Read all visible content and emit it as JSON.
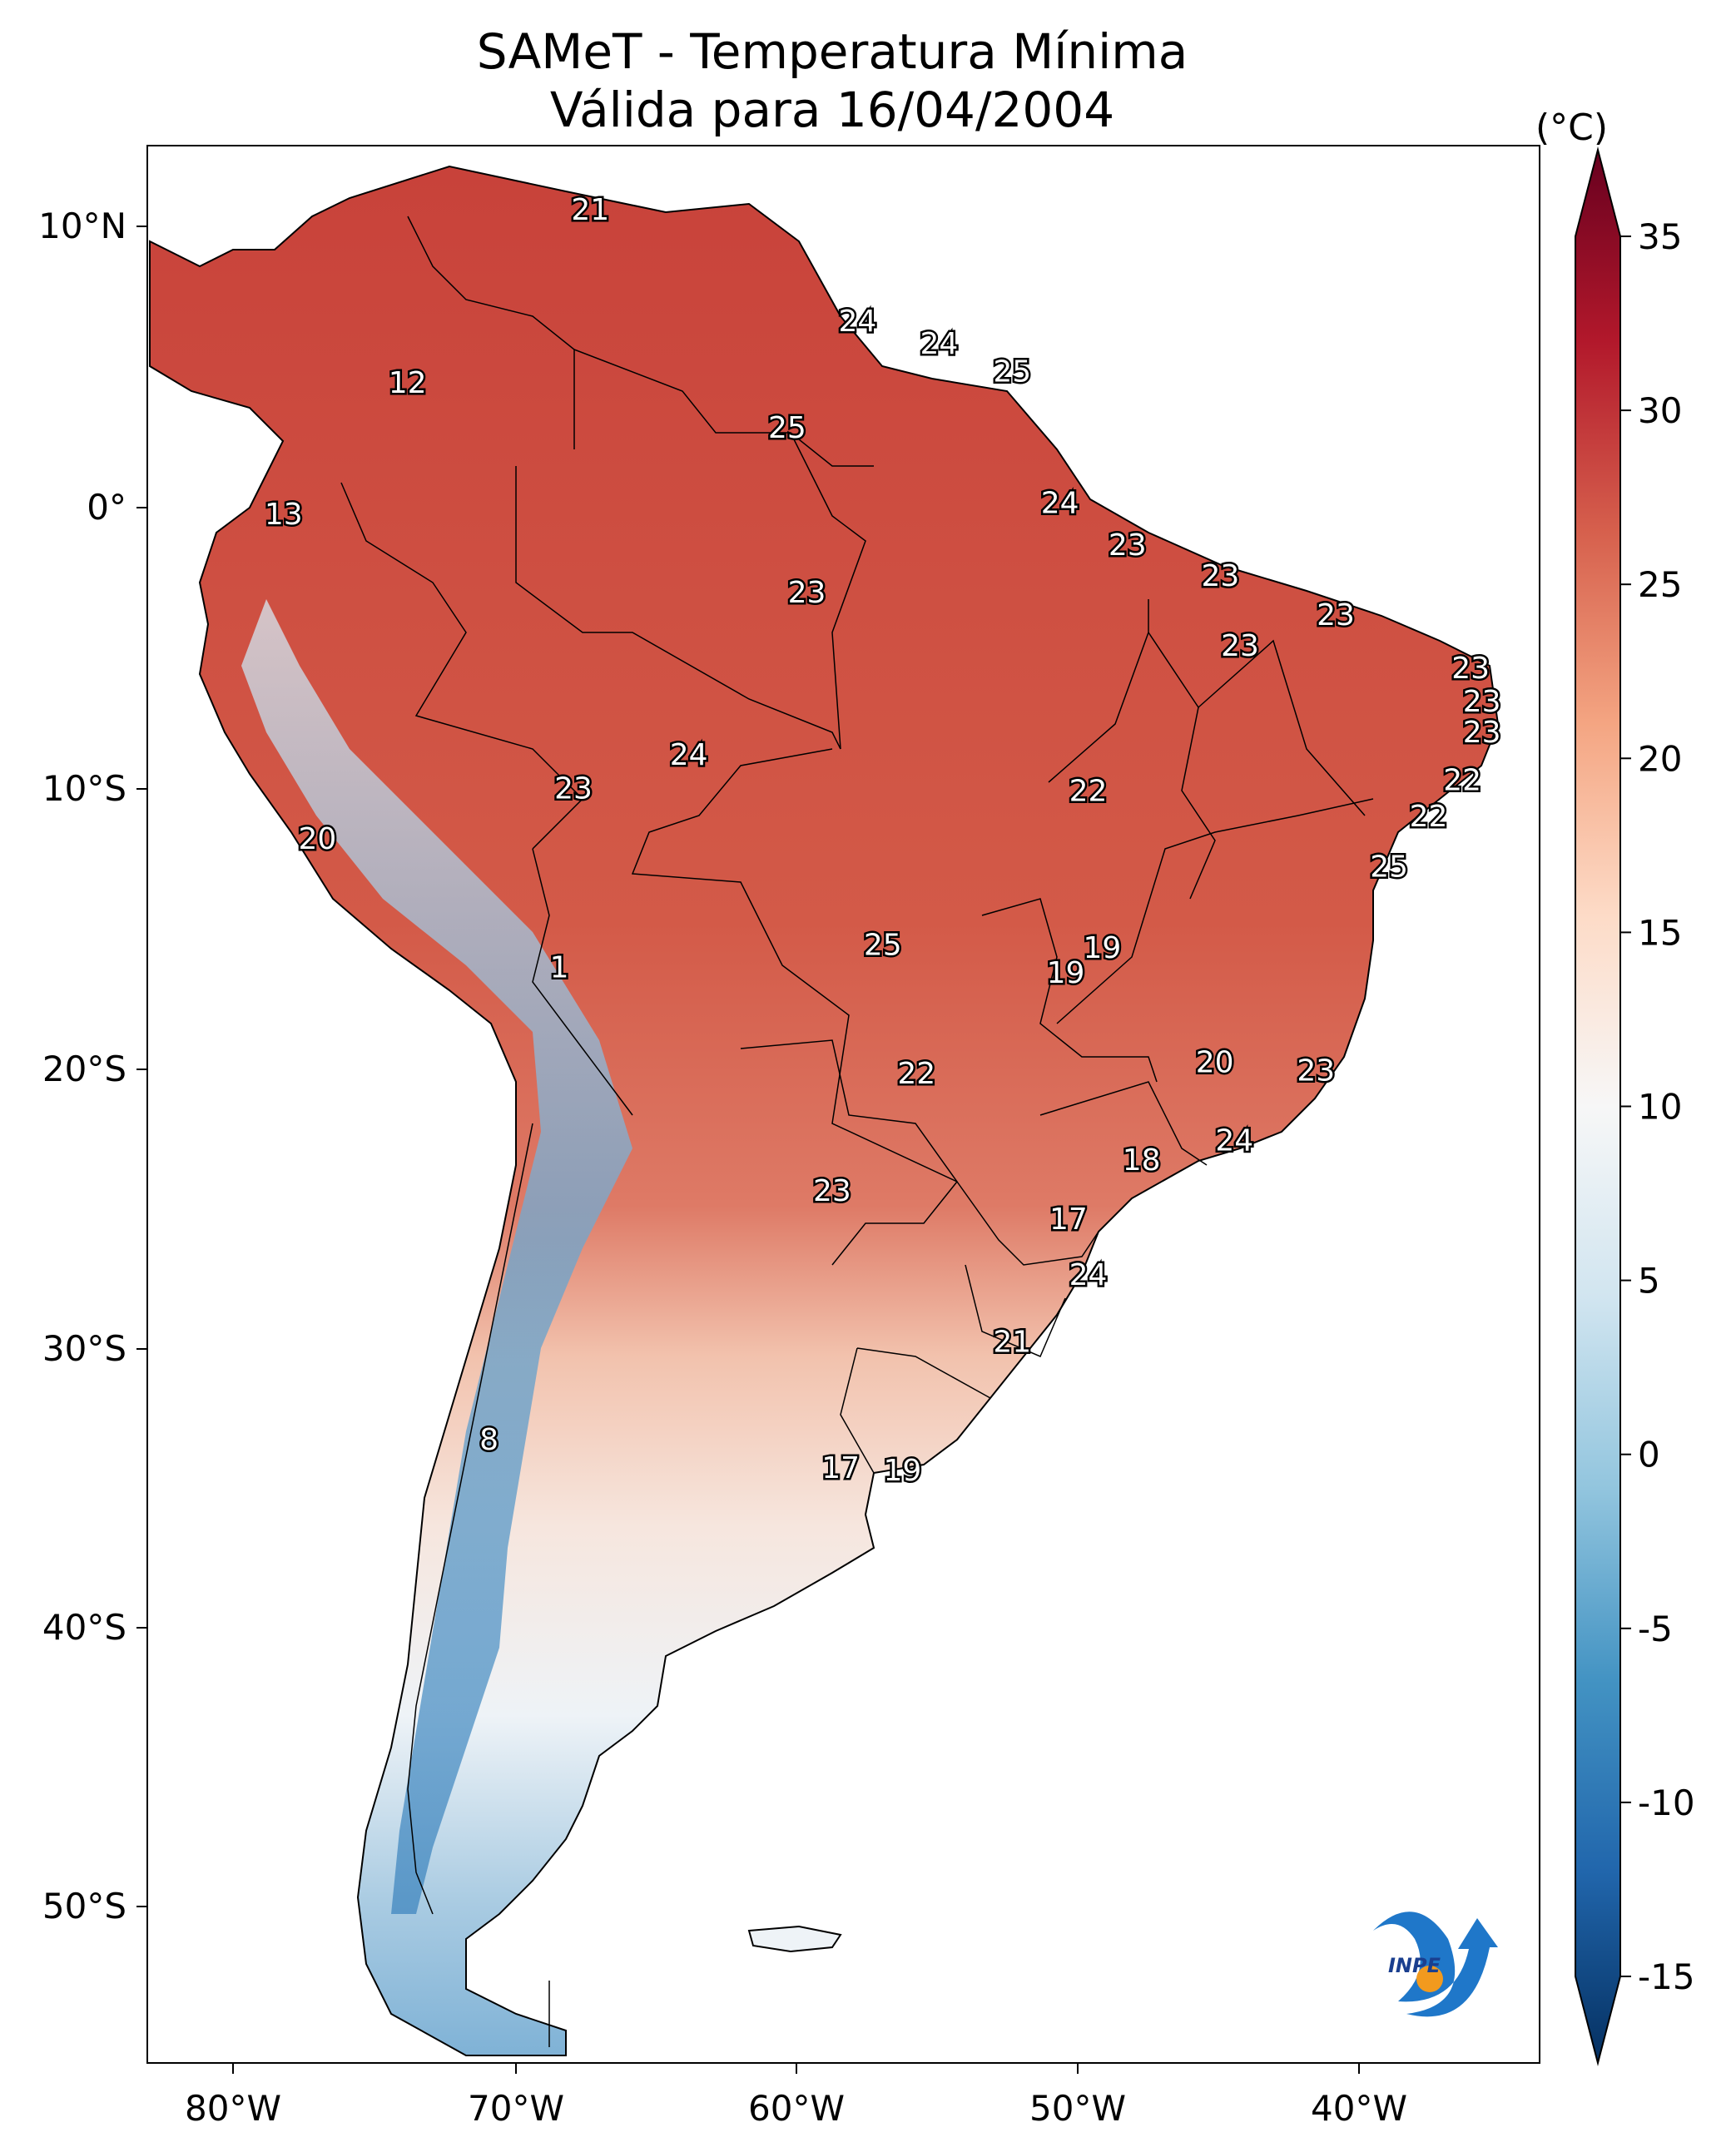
{
  "title_line1": "SAMeT - Temperatura Mínima",
  "title_line2": "Válida para 16/04/2004",
  "colorbar": {
    "units": "(°C)",
    "ticks": [
      "35",
      "30",
      "25",
      "20",
      "15",
      "10",
      "5",
      "0",
      "-5",
      "-10",
      "-15"
    ],
    "min": -15,
    "max": 35,
    "colors": [
      "#053061",
      "#2166ac",
      "#4393c3",
      "#92c5de",
      "#d1e5f0",
      "#f7f7f7",
      "#fddbc7",
      "#f4a582",
      "#d6604d",
      "#b2182b",
      "#67001f"
    ]
  },
  "axes": {
    "lon_labels": [
      "80°W",
      "70°W",
      "60°W",
      "50°W",
      "40°W"
    ],
    "lat_labels": [
      "10°N",
      "0°",
      "10°S",
      "20°S",
      "30°S",
      "40°S",
      "50°S"
    ]
  },
  "logo": {
    "text": "INPE"
  },
  "map_labels": [
    {
      "text": "21",
      "lon": -67.3,
      "lat": 10.6
    },
    {
      "text": "12",
      "lon": -73.8,
      "lat": 4.4
    },
    {
      "text": "13",
      "lon": -78.2,
      "lat": -0.3
    },
    {
      "text": "24",
      "lon": -57.8,
      "lat": 6.6
    },
    {
      "text": "24",
      "lon": -54.9,
      "lat": 5.8
    },
    {
      "text": "25",
      "lon": -52.3,
      "lat": 4.8
    },
    {
      "text": "25",
      "lon": -60.3,
      "lat": 2.8
    },
    {
      "text": "24",
      "lon": -50.6,
      "lat": 0.1
    },
    {
      "text": "23",
      "lon": -48.2,
      "lat": -1.4
    },
    {
      "text": "23",
      "lon": -44.9,
      "lat": -2.5
    },
    {
      "text": "23",
      "lon": -40.8,
      "lat": -3.9
    },
    {
      "text": "23",
      "lon": -59.6,
      "lat": -3.1
    },
    {
      "text": "23",
      "lon": -44.2,
      "lat": -5.0
    },
    {
      "text": "23",
      "lon": -36.0,
      "lat": -5.8
    },
    {
      "text": "23",
      "lon": -35.6,
      "lat": -7.0
    },
    {
      "text": "23",
      "lon": -35.6,
      "lat": -8.1
    },
    {
      "text": "24",
      "lon": -63.8,
      "lat": -8.9
    },
    {
      "text": "23",
      "lon": -67.9,
      "lat": -10.1
    },
    {
      "text": "22",
      "lon": -49.6,
      "lat": -10.2
    },
    {
      "text": "22",
      "lon": -36.3,
      "lat": -9.8
    },
    {
      "text": "22",
      "lon": -37.5,
      "lat": -11.1
    },
    {
      "text": "25",
      "lon": -38.9,
      "lat": -12.9
    },
    {
      "text": "20",
      "lon": -77.0,
      "lat": -11.9
    },
    {
      "text": "25",
      "lon": -56.9,
      "lat": -15.7
    },
    {
      "text": "19",
      "lon": -49.1,
      "lat": -15.8
    },
    {
      "text": "19",
      "lon": -50.4,
      "lat": -16.7
    },
    {
      "text": "1",
      "lon": -68.4,
      "lat": -16.5
    },
    {
      "text": "22",
      "lon": -55.7,
      "lat": -20.3
    },
    {
      "text": "20",
      "lon": -45.1,
      "lat": -19.9
    },
    {
      "text": "23",
      "lon": -41.5,
      "lat": -20.2
    },
    {
      "text": "24",
      "lon": -44.4,
      "lat": -22.7
    },
    {
      "text": "18",
      "lon": -47.7,
      "lat": -23.4
    },
    {
      "text": "23",
      "lon": -58.7,
      "lat": -24.5
    },
    {
      "text": "17",
      "lon": -50.3,
      "lat": -25.5
    },
    {
      "text": "24",
      "lon": -49.6,
      "lat": -27.5
    },
    {
      "text": "21",
      "lon": -52.3,
      "lat": -29.9
    },
    {
      "text": "8",
      "lon": -70.9,
      "lat": -33.4
    },
    {
      "text": "17",
      "lon": -58.4,
      "lat": -34.4
    },
    {
      "text": "19",
      "lon": -56.2,
      "lat": -34.5
    }
  ]
}
